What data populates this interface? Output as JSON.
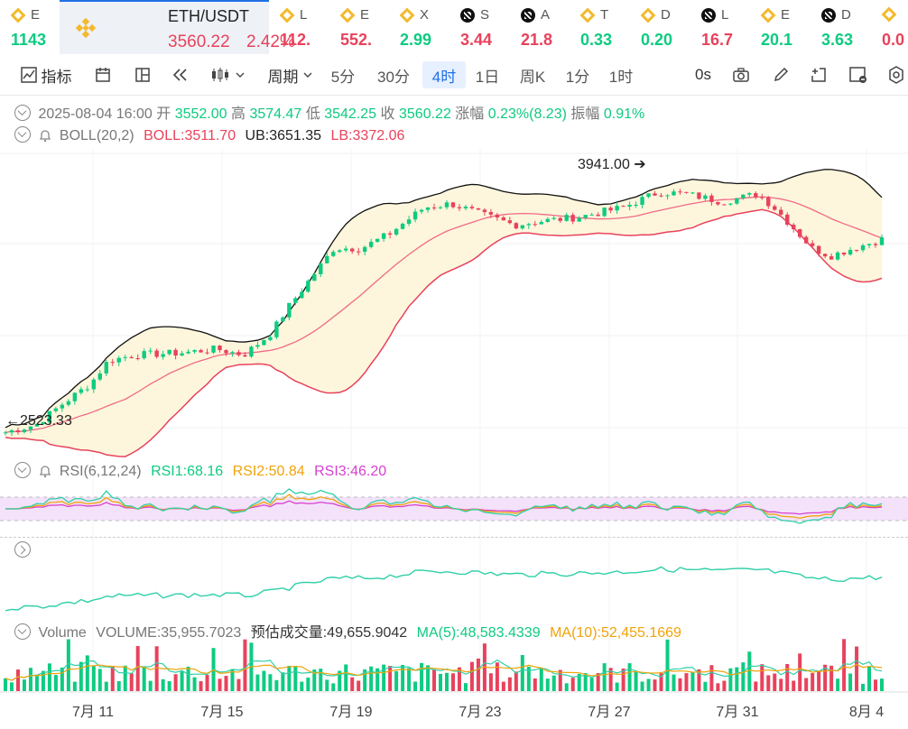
{
  "tickers": [
    {
      "sym": "E",
      "price": "1143",
      "dir": "up",
      "icon": "bnb-icon"
    },
    {
      "sym": "L",
      "price": "112.",
      "dir": "dn",
      "icon": "bnb-icon"
    },
    {
      "sym": "E",
      "price": "552.",
      "dir": "dn",
      "icon": "bnb-icon"
    },
    {
      "sym": "X",
      "price": "2.99",
      "dir": "up",
      "icon": "bnb-icon"
    },
    {
      "sym": "S",
      "price": "3.44",
      "dir": "dn",
      "icon": "okx-icon"
    },
    {
      "sym": "A",
      "price": "21.8",
      "dir": "dn",
      "icon": "okx-icon"
    },
    {
      "sym": "T",
      "price": "0.33",
      "dir": "up",
      "icon": "bnb-icon"
    },
    {
      "sym": "D",
      "price": "0.20",
      "dir": "up",
      "icon": "bnb-icon"
    },
    {
      "sym": "L",
      "price": "16.7",
      "dir": "dn",
      "icon": "okx-icon"
    },
    {
      "sym": "E",
      "price": "20.1",
      "dir": "up",
      "icon": "bnb-icon"
    },
    {
      "sym": "D",
      "price": "3.63",
      "dir": "up",
      "icon": "okx-icon"
    },
    {
      "sym": "",
      "price": "0.0",
      "dir": "dn",
      "icon": "bnb-icon"
    }
  ],
  "active": {
    "pair": "ETH/USDT",
    "price": "3560.22",
    "pct": "2.42%"
  },
  "toolbar": {
    "indicator": "指标",
    "period": "周期",
    "intervals": [
      "5分",
      "30分",
      "4时",
      "1日",
      "周K",
      "1分",
      "1时"
    ],
    "selected": "4时",
    "countdown": "0s"
  },
  "ohlc": {
    "date": "2025-08-04 16:00",
    "open_label": "开",
    "open": "3552.00",
    "high_label": "高",
    "high": "3574.47",
    "low_label": "低",
    "low": "3542.25",
    "close_label": "收",
    "close": "3560.22",
    "chg_label": "涨幅",
    "chg": "0.23%(8.23)",
    "amp_label": "振幅",
    "amp": "0.91%"
  },
  "boll": {
    "name": "BOLL(20,2)",
    "mid": "BOLL:3511.70",
    "ub": "UB:3651.35",
    "lb": "LB:3372.06"
  },
  "rsi": {
    "name": "RSI(6,12,24)",
    "r1": "RSI1:68.16",
    "r2": "RSI2:50.84",
    "r3": "RSI3:46.20"
  },
  "volume": {
    "name": "Volume",
    "vol": "VOLUME:35,955.7023",
    "est": "预估成交量:49,655.9042",
    "ma5": "MA(5):48,583.4339",
    "ma10": "MA(10):52,455.1669"
  },
  "annotations": {
    "high": "3941.00",
    "low": "2523.33"
  },
  "xaxis": [
    "7月 11",
    "7月 15",
    "7月 19",
    "7月 23",
    "7月 27",
    "7月 31",
    "8月 4"
  ],
  "colors": {
    "up": "#0ecb81",
    "down": "#e8425c",
    "accent": "#1f6fe5",
    "band": "#fdf6dc",
    "rsiband": "#f3e2fa"
  }
}
